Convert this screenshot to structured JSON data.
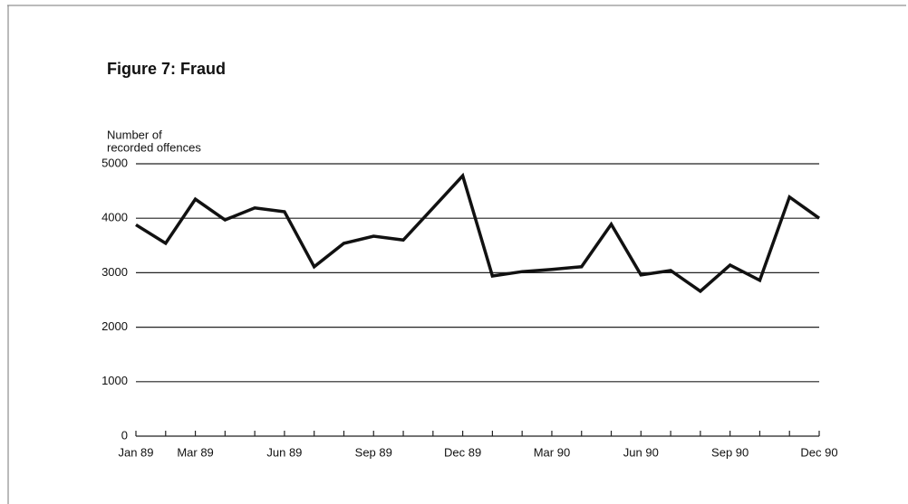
{
  "chart_data": {
    "type": "line",
    "title": "Figure 7:  Fraud",
    "ylabel": [
      "Number of",
      "recorded offences"
    ],
    "categories": [
      "Jan 89",
      null,
      "Mar 89",
      null,
      null,
      "Jun 89",
      null,
      null,
      "Sep 89",
      null,
      null,
      "Dec 89",
      null,
      null,
      "Mar 90",
      null,
      null,
      "Jun 90",
      null,
      null,
      "Sep 90",
      null,
      null,
      "Dec 90"
    ],
    "series": [
      {
        "color": "#111111",
        "values": [
          3880,
          3540,
          4350,
          3970,
          4190,
          4120,
          3110,
          3540,
          3670,
          3600,
          4190,
          4780,
          2940,
          3020,
          3060,
          3110,
          3890,
          2960,
          3040,
          2660,
          3140,
          2860,
          4390,
          4000
        ]
      }
    ],
    "ylim": [
      0,
      5000
    ],
    "yticks": [
      0,
      1000,
      2000,
      3000,
      4000,
      5000
    ],
    "grid": true
  }
}
